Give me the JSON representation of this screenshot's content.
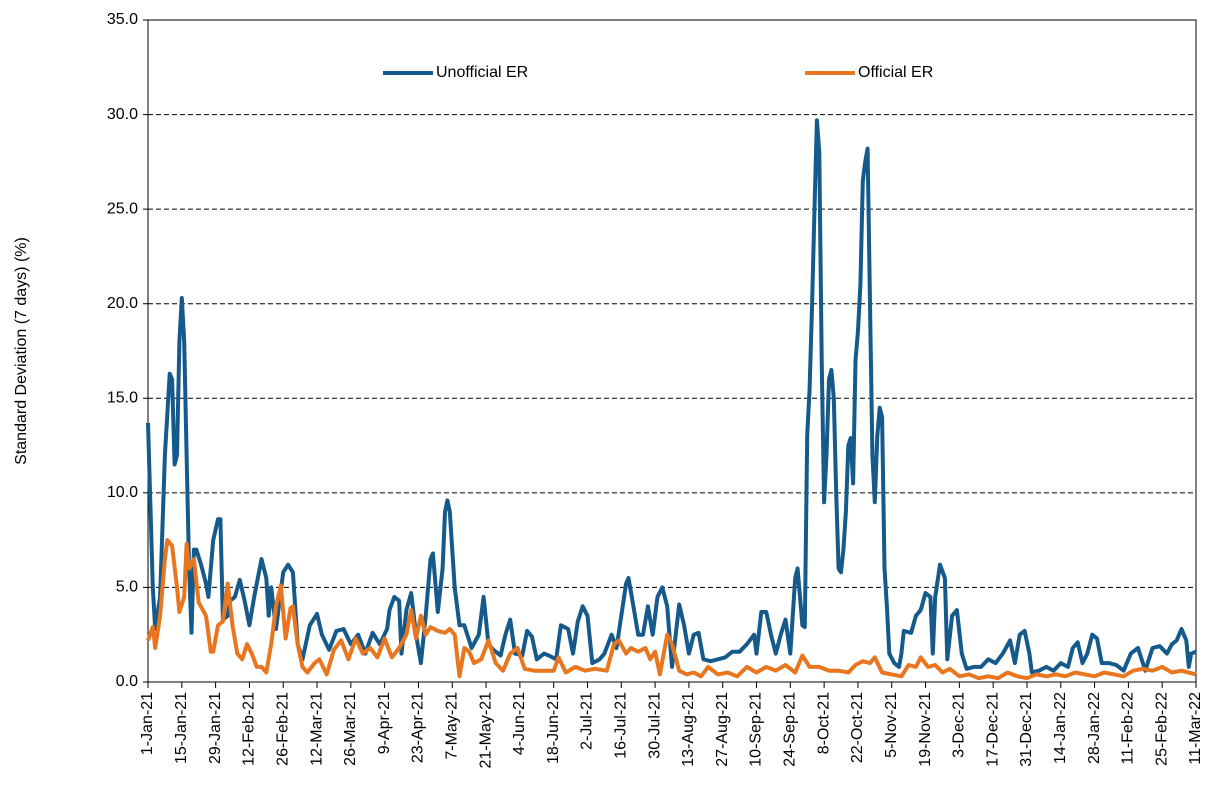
{
  "chart_data": {
    "type": "line",
    "ylabel": "Standard Deviation (7 days) (%)",
    "xlim": [
      "2021-01-01",
      "2022-03-11"
    ],
    "xticks": [
      {
        "value": "2021-01-01",
        "label": "1-Jan-21"
      },
      {
        "value": "2021-01-15",
        "label": "15-Jan-21"
      },
      {
        "value": "2021-01-29",
        "label": "29-Jan-21"
      },
      {
        "value": "2021-02-12",
        "label": "12-Feb-21"
      },
      {
        "value": "2021-02-26",
        "label": "26-Feb-21"
      },
      {
        "value": "2021-03-12",
        "label": "12-Mar-21"
      },
      {
        "value": "2021-03-26",
        "label": "26-Mar-21"
      },
      {
        "value": "2021-04-09",
        "label": "9-Apr-21"
      },
      {
        "value": "2021-04-23",
        "label": "23-Apr-21"
      },
      {
        "value": "2021-05-07",
        "label": "7-May-21"
      },
      {
        "value": "2021-05-21",
        "label": "21-May-21"
      },
      {
        "value": "2021-06-04",
        "label": "4-Jun-21"
      },
      {
        "value": "2021-06-18",
        "label": "18-Jun-21"
      },
      {
        "value": "2021-07-02",
        "label": "2-Jul-21"
      },
      {
        "value": "2021-07-16",
        "label": "16-Jul-21"
      },
      {
        "value": "2021-07-30",
        "label": "30-Jul-21"
      },
      {
        "value": "2021-08-13",
        "label": "13-Aug-21"
      },
      {
        "value": "2021-08-27",
        "label": "27-Aug-21"
      },
      {
        "value": "2021-09-10",
        "label": "10-Sep-21"
      },
      {
        "value": "2021-09-24",
        "label": "24-Sep-21"
      },
      {
        "value": "2021-10-08",
        "label": "8-Oct-21"
      },
      {
        "value": "2021-10-22",
        "label": "22-Oct-21"
      },
      {
        "value": "2021-11-05",
        "label": "5-Nov-21"
      },
      {
        "value": "2021-11-19",
        "label": "19-Nov-21"
      },
      {
        "value": "2021-12-03",
        "label": "3-Dec-21"
      },
      {
        "value": "2021-12-17",
        "label": "17-Dec-21"
      },
      {
        "value": "2021-12-31",
        "label": "31-Dec-21"
      },
      {
        "value": "2022-01-14",
        "label": "14-Jan-22"
      },
      {
        "value": "2022-01-28",
        "label": "28-Jan-22"
      },
      {
        "value": "2022-02-11",
        "label": "11-Feb-22"
      },
      {
        "value": "2022-02-25",
        "label": "25-Feb-22"
      },
      {
        "value": "2022-03-11",
        "label": "11-Mar-22"
      }
    ],
    "ylim": [
      0,
      35
    ],
    "yticks": [
      {
        "value": 0,
        "label": "0.0"
      },
      {
        "value": 5,
        "label": "5.0"
      },
      {
        "value": 10,
        "label": "10.0"
      },
      {
        "value": 15,
        "label": "15.0"
      },
      {
        "value": 20,
        "label": "20.0"
      },
      {
        "value": 25,
        "label": "25.0"
      },
      {
        "value": 30,
        "label": "30.0"
      },
      {
        "value": 35,
        "label": "35.0"
      }
    ],
    "grid": true,
    "legend": "top",
    "series": [
      {
        "name": "Unofficial ER",
        "color": "#155a8a",
        "x": [
          "2021-01-01",
          "2021-01-03",
          "2021-01-04",
          "2021-01-06",
          "2021-01-08",
          "2021-01-10",
          "2021-01-11",
          "2021-01-12",
          "2021-01-13",
          "2021-01-14",
          "2021-01-15",
          "2021-01-16",
          "2021-01-17",
          "2021-01-18",
          "2021-01-19",
          "2021-01-20",
          "2021-01-21",
          "2021-01-23",
          "2021-01-25",
          "2021-01-26",
          "2021-01-28",
          "2021-01-30",
          "2021-01-31",
          "2021-02-01",
          "2021-02-03",
          "2021-02-04",
          "2021-02-06",
          "2021-02-08",
          "2021-02-10",
          "2021-02-12",
          "2021-02-14",
          "2021-02-17",
          "2021-02-19",
          "2021-02-20",
          "2021-02-21",
          "2021-02-23",
          "2021-02-26",
          "2021-02-28",
          "2021-03-02",
          "2021-03-04",
          "2021-03-06",
          "2021-03-09",
          "2021-03-12",
          "2021-03-14",
          "2021-03-17",
          "2021-03-20",
          "2021-03-23",
          "2021-03-26",
          "2021-03-29",
          "2021-04-01",
          "2021-04-04",
          "2021-04-07",
          "2021-04-10",
          "2021-04-11",
          "2021-04-13",
          "2021-04-15",
          "2021-04-16",
          "2021-04-18",
          "2021-04-20",
          "2021-04-22",
          "2021-04-24",
          "2021-04-26",
          "2021-04-28",
          "2021-04-29",
          "2021-05-01",
          "2021-05-03",
          "2021-05-04",
          "2021-05-05",
          "2021-05-06",
          "2021-05-08",
          "2021-05-10",
          "2021-05-12",
          "2021-05-15",
          "2021-05-18",
          "2021-05-20",
          "2021-05-22",
          "2021-05-24",
          "2021-05-27",
          "2021-05-29",
          "2021-05-31",
          "2021-06-02",
          "2021-06-05",
          "2021-06-07",
          "2021-06-09",
          "2021-06-11",
          "2021-06-14",
          "2021-06-16",
          "2021-06-19",
          "2021-06-21",
          "2021-06-24",
          "2021-06-26",
          "2021-06-28",
          "2021-06-30",
          "2021-07-02",
          "2021-07-04",
          "2021-07-07",
          "2021-07-09",
          "2021-07-12",
          "2021-07-14",
          "2021-07-16",
          "2021-07-18",
          "2021-07-19",
          "2021-07-21",
          "2021-07-23",
          "2021-07-25",
          "2021-07-27",
          "2021-07-29",
          "2021-07-31",
          "2021-08-02",
          "2021-08-04",
          "2021-08-06",
          "2021-08-09",
          "2021-08-11",
          "2021-08-13",
          "2021-08-15",
          "2021-08-17",
          "2021-08-19",
          "2021-08-22",
          "2021-08-25",
          "2021-08-28",
          "2021-08-31",
          "2021-09-03",
          "2021-09-06",
          "2021-09-09",
          "2021-09-10",
          "2021-09-12",
          "2021-09-14",
          "2021-09-16",
          "2021-09-18",
          "2021-09-20",
          "2021-09-22",
          "2021-09-24",
          "2021-09-26",
          "2021-09-27",
          "2021-09-29",
          "2021-09-30",
          "2021-10-01",
          "2021-10-02",
          "2021-10-03",
          "2021-10-04",
          "2021-10-05",
          "2021-10-06",
          "2021-10-07",
          "2021-10-08",
          "2021-10-09",
          "2021-10-10",
          "2021-10-11",
          "2021-10-12",
          "2021-10-13",
          "2021-10-14",
          "2021-10-15",
          "2021-10-16",
          "2021-10-17",
          "2021-10-18",
          "2021-10-19",
          "2021-10-20",
          "2021-10-21",
          "2021-10-22",
          "2021-10-23",
          "2021-10-24",
          "2021-10-25",
          "2021-10-26",
          "2021-10-27",
          "2021-10-28",
          "2021-10-29",
          "2021-10-30",
          "2021-10-31",
          "2021-11-01",
          "2021-11-02",
          "2021-11-03",
          "2021-11-04",
          "2021-11-06",
          "2021-11-08",
          "2021-11-09",
          "2021-11-10",
          "2021-11-13",
          "2021-11-15",
          "2021-11-17",
          "2021-11-19",
          "2021-11-21",
          "2021-11-22",
          "2021-11-23",
          "2021-11-25",
          "2021-11-27",
          "2021-11-28",
          "2021-11-30",
          "2021-12-02",
          "2021-12-04",
          "2021-12-06",
          "2021-12-09",
          "2021-12-12",
          "2021-12-15",
          "2021-12-18",
          "2021-12-21",
          "2021-12-24",
          "2021-12-26",
          "2021-12-28",
          "2021-12-30",
          "2022-01-01",
          "2022-01-02",
          "2022-01-05",
          "2022-01-08",
          "2022-01-11",
          "2022-01-14",
          "2022-01-17",
          "2022-01-19",
          "2022-01-21",
          "2022-01-23",
          "2022-01-25",
          "2022-01-27",
          "2022-01-29",
          "2022-01-31",
          "2022-02-03",
          "2022-02-06",
          "2022-02-09",
          "2022-02-12",
          "2022-02-15",
          "2022-02-18",
          "2022-02-21",
          "2022-02-24",
          "2022-02-27",
          "2022-03-01",
          "2022-03-03",
          "2022-03-05",
          "2022-03-07",
          "2022-03-08",
          "2022-03-09",
          "2022-03-11"
        ],
        "values": [
          13.7,
          5,
          2.8,
          4.5,
          12,
          16.3,
          16,
          11.5,
          12,
          18,
          20.3,
          18,
          12,
          6,
          2.6,
          7,
          7,
          6.2,
          5.2,
          4.5,
          7.5,
          8.6,
          8.6,
          3.3,
          3.5,
          4.3,
          4.5,
          5.4,
          4.3,
          3,
          4.5,
          6.5,
          5.5,
          3.5,
          5,
          2.8,
          5.8,
          6.2,
          5.8,
          2,
          1.2,
          3,
          3.6,
          2.5,
          1.7,
          2.7,
          2.8,
          2,
          2.5,
          1.5,
          2.6,
          2,
          2.8,
          3.8,
          4.5,
          4.3,
          1.5,
          3.8,
          4.7,
          2.5,
          1,
          3.5,
          6.5,
          6.8,
          3.7,
          6,
          9,
          9.6,
          9,
          5,
          3,
          3,
          1.8,
          2.5,
          4.5,
          2,
          1.7,
          1.4,
          2.5,
          3.3,
          1.5,
          1.4,
          2.7,
          2.4,
          1.2,
          1.5,
          1.4,
          1.2,
          3,
          2.8,
          1.5,
          3.2,
          4,
          3.5,
          1,
          1.2,
          1.5,
          2.5,
          1.8,
          3.5,
          5.2,
          5.5,
          4,
          2.5,
          2.5,
          4,
          2.5,
          4.5,
          5,
          4,
          0.8,
          4.1,
          3,
          1.5,
          2.5,
          2.6,
          1.2,
          1.1,
          1.2,
          1.3,
          1.6,
          1.6,
          2,
          2.5,
          1.5,
          3.7,
          3.7,
          2.5,
          1.5,
          2.5,
          3.3,
          1.5,
          5.5,
          6,
          3,
          2.9,
          13,
          15.5,
          20,
          25,
          29.7,
          28,
          17,
          9.5,
          12,
          16,
          16.5,
          15,
          10,
          6,
          5.8,
          7,
          9,
          12.5,
          12.9,
          10.5,
          17,
          18.5,
          21,
          26.5,
          27.5,
          28.2,
          20,
          12,
          9.5,
          13,
          14.5,
          14,
          6,
          4,
          1.5,
          1,
          0.8,
          1.5,
          2.7,
          2.6,
          3.5,
          3.8,
          4.7,
          4.5,
          1.5,
          4.5,
          6.2,
          5.5,
          1.2,
          3.5,
          3.8,
          1.5,
          0.7,
          0.8,
          0.8,
          1.2,
          1,
          1.5,
          2.2,
          1,
          2.5,
          2.7,
          1.5,
          0.5,
          0.6,
          0.8,
          0.6,
          1,
          0.8,
          1.8,
          2.1,
          1,
          1.5,
          2.5,
          2.3,
          1,
          1,
          0.9,
          0.6,
          1.5,
          1.8,
          0.6,
          1.8,
          1.9,
          1.5,
          2,
          2.2,
          2.8,
          2.2,
          0.8,
          1.5,
          1.6
        ]
      },
      {
        "name": "Official ER",
        "color": "#e8761e",
        "x": [
          "2021-01-01",
          "2021-01-03",
          "2021-01-04",
          "2021-01-06",
          "2021-01-08",
          "2021-01-09",
          "2021-01-11",
          "2021-01-13",
          "2021-01-14",
          "2021-01-16",
          "2021-01-17",
          "2021-01-18",
          "2021-01-20",
          "2021-01-22",
          "2021-01-25",
          "2021-01-27",
          "2021-01-28",
          "2021-01-30",
          "2021-02-01",
          "2021-02-03",
          "2021-02-05",
          "2021-02-07",
          "2021-02-09",
          "2021-02-11",
          "2021-02-13",
          "2021-02-15",
          "2021-02-17",
          "2021-02-19",
          "2021-02-21",
          "2021-02-23",
          "2021-02-25",
          "2021-02-27",
          "2021-03-01",
          "2021-03-02",
          "2021-03-04",
          "2021-03-06",
          "2021-03-08",
          "2021-03-11",
          "2021-03-13",
          "2021-03-16",
          "2021-03-19",
          "2021-03-22",
          "2021-03-25",
          "2021-03-28",
          "2021-03-31",
          "2021-04-03",
          "2021-04-06",
          "2021-04-09",
          "2021-04-12",
          "2021-04-15",
          "2021-04-18",
          "2021-04-20",
          "2021-04-22",
          "2021-04-24",
          "2021-04-26",
          "2021-04-28",
          "2021-05-01",
          "2021-05-04",
          "2021-05-06",
          "2021-05-08",
          "2021-05-10",
          "2021-05-12",
          "2021-05-14",
          "2021-05-16",
          "2021-05-19",
          "2021-05-22",
          "2021-05-25",
          "2021-05-28",
          "2021-05-31",
          "2021-06-03",
          "2021-06-06",
          "2021-06-10",
          "2021-06-14",
          "2021-06-18",
          "2021-06-20",
          "2021-06-23",
          "2021-06-27",
          "2021-07-01",
          "2021-07-05",
          "2021-07-10",
          "2021-07-13",
          "2021-07-15",
          "2021-07-18",
          "2021-07-20",
          "2021-07-23",
          "2021-07-26",
          "2021-07-28",
          "2021-07-30",
          "2021-08-01",
          "2021-08-04",
          "2021-08-06",
          "2021-08-09",
          "2021-08-12",
          "2021-08-15",
          "2021-08-18",
          "2021-08-21",
          "2021-08-25",
          "2021-08-29",
          "2021-09-02",
          "2021-09-06",
          "2021-09-10",
          "2021-09-14",
          "2021-09-18",
          "2021-09-22",
          "2021-09-26",
          "2021-09-29",
          "2021-10-02",
          "2021-10-06",
          "2021-10-10",
          "2021-10-14",
          "2021-10-18",
          "2021-10-21",
          "2021-10-24",
          "2021-10-27",
          "2021-10-29",
          "2021-11-01",
          "2021-11-05",
          "2021-11-09",
          "2021-11-12",
          "2021-11-15",
          "2021-11-17",
          "2021-11-20",
          "2021-11-23",
          "2021-11-26",
          "2021-11-29",
          "2021-12-03",
          "2021-12-07",
          "2021-12-11",
          "2021-12-15",
          "2021-12-19",
          "2021-12-23",
          "2021-12-27",
          "2021-12-31",
          "2022-01-04",
          "2022-01-08",
          "2022-01-12",
          "2022-01-16",
          "2022-01-20",
          "2022-01-24",
          "2022-01-28",
          "2022-02-01",
          "2022-02-05",
          "2022-02-09",
          "2022-02-13",
          "2022-02-17",
          "2022-02-21",
          "2022-02-25",
          "2022-03-01",
          "2022-03-05",
          "2022-03-11"
        ],
        "values": [
          2.2,
          2.9,
          1.8,
          3.5,
          6.5,
          7.5,
          7.2,
          5,
          3.7,
          4.5,
          7.3,
          6,
          6.5,
          4.2,
          3.5,
          1.6,
          1.6,
          3,
          3.2,
          5.2,
          3,
          1.5,
          1.2,
          2,
          1.5,
          0.8,
          0.8,
          0.5,
          2,
          4,
          5.1,
          2.3,
          3.9,
          4,
          2,
          0.8,
          0.5,
          1,
          1.2,
          0.4,
          1.7,
          2.2,
          1.2,
          2.3,
          1.5,
          1.8,
          1.3,
          2.3,
          1.3,
          1.8,
          2.5,
          3.8,
          2.3,
          3.5,
          2.5,
          2.9,
          2.7,
          2.6,
          2.8,
          2.5,
          0.3,
          1.8,
          1.6,
          1,
          1.2,
          2.2,
          1,
          0.6,
          1.5,
          1.8,
          0.7,
          0.6,
          0.6,
          0.6,
          1.3,
          0.5,
          0.8,
          0.6,
          0.7,
          0.6,
          2,
          2.2,
          1.5,
          1.8,
          1.6,
          1.8,
          1.2,
          1.6,
          0.4,
          2.5,
          2,
          0.6,
          0.4,
          0.5,
          0.3,
          0.8,
          0.4,
          0.5,
          0.3,
          0.8,
          0.5,
          0.8,
          0.6,
          0.9,
          0.5,
          1.4,
          0.8,
          0.8,
          0.6,
          0.6,
          0.5,
          0.9,
          1.1,
          1,
          1.3,
          0.5,
          0.4,
          0.3,
          0.9,
          0.8,
          1.3,
          0.8,
          0.9,
          0.5,
          0.7,
          0.3,
          0.4,
          0.2,
          0.3,
          0.2,
          0.5,
          0.3,
          0.2,
          0.4,
          0.3,
          0.4,
          0.3,
          0.5,
          0.4,
          0.3,
          0.5,
          0.4,
          0.3,
          0.6,
          0.7,
          0.6,
          0.8,
          0.5,
          0.6,
          0.4
        ]
      }
    ]
  }
}
